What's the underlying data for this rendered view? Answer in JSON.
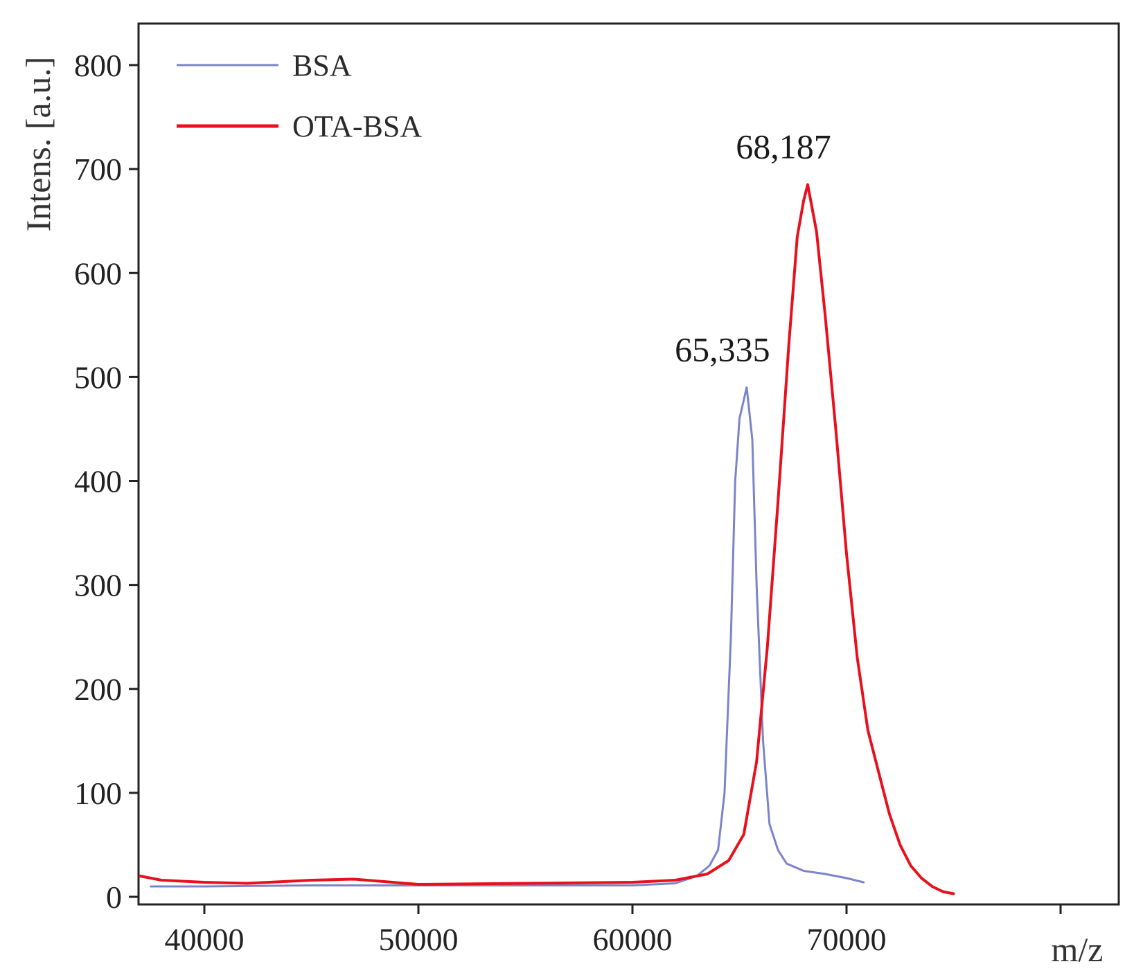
{
  "chart_data": {
    "type": "line",
    "xlabel": "m/z",
    "ylabel": "Intens. [a.u.]",
    "xlim": [
      37000,
      83000
    ],
    "ylim": [
      -10,
      840
    ],
    "xticks": [
      40000,
      50000,
      60000,
      70000,
      80000
    ],
    "xtick_labels": [
      "40000",
      "50000",
      "60000",
      "70000",
      ""
    ],
    "yticks": [
      0,
      100,
      200,
      300,
      400,
      500,
      600,
      700,
      800
    ],
    "ytick_labels": [
      "0",
      "100",
      "200",
      "300",
      "400",
      "500",
      "600",
      "700",
      "800"
    ],
    "legend_position": "top-left",
    "grid": false,
    "series": [
      {
        "name": "BSA",
        "color": "#7b84c8",
        "x": [
          37500,
          40000,
          45000,
          50000,
          55000,
          60000,
          62000,
          63000,
          63600,
          64000,
          64300,
          64600,
          64800,
          65000,
          65335,
          65600,
          65800,
          66100,
          66400,
          66800,
          67200,
          68000,
          69000,
          70000,
          70800
        ],
        "y": [
          10,
          10,
          11,
          11,
          11,
          11,
          13,
          20,
          30,
          45,
          100,
          250,
          400,
          460,
          490,
          440,
          300,
          150,
          70,
          45,
          32,
          25,
          22,
          18,
          14
        ]
      },
      {
        "name": "OTA-BSA",
        "color": "#e8101c",
        "x": [
          37000,
          38000,
          40000,
          42000,
          45000,
          47000,
          50000,
          55000,
          60000,
          62000,
          63500,
          64500,
          65200,
          65800,
          66300,
          66800,
          67300,
          67700,
          68000,
          68187,
          68600,
          69000,
          69500,
          70000,
          70500,
          71000,
          71500,
          72000,
          72500,
          73000,
          73500,
          74000,
          74500,
          75000
        ],
        "y": [
          20,
          16,
          14,
          13,
          16,
          17,
          12,
          13,
          14,
          16,
          22,
          35,
          60,
          130,
          240,
          380,
          530,
          635,
          670,
          685,
          640,
          560,
          450,
          330,
          230,
          160,
          120,
          80,
          50,
          30,
          18,
          10,
          5,
          3
        ]
      }
    ],
    "annotations": [
      {
        "text": "65,335",
        "x": 65335,
        "y": 490
      },
      {
        "text": "68,187",
        "x": 68187,
        "y": 685
      }
    ]
  }
}
